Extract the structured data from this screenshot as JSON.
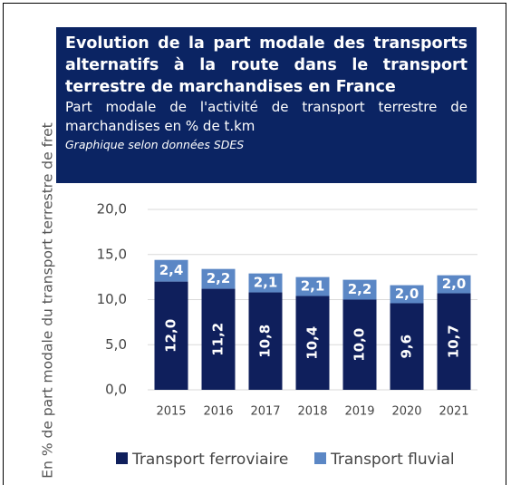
{
  "chart_data": {
    "type": "stacked_bar",
    "title": "Evolution de la part modale des transports alternatifs à la route dans le transport terrestre de marchandises en France",
    "subtitle": "Part modale de l'activité de transport terrestre de marchandises en % de t.km",
    "source": "Graphique selon données SDES",
    "y_label": "En % de part modale du transport terrestre de fret",
    "categories": [
      "2015",
      "2016",
      "2017",
      "2018",
      "2019",
      "2020",
      "2021"
    ],
    "series": [
      {
        "name": "Transport ferroviaire",
        "color": "#0f1f5c",
        "values": [
          12.0,
          11.2,
          10.8,
          10.4,
          10.0,
          9.6,
          10.7
        ],
        "value_labels": [
          "12,0",
          "11,2",
          "10,8",
          "10,4",
          "10,0",
          "9,6",
          "10,7"
        ]
      },
      {
        "name": "Transport fluvial",
        "color": "#5b87c5",
        "values": [
          2.4,
          2.2,
          2.1,
          2.1,
          2.2,
          2.0,
          2.0
        ],
        "value_labels": [
          "2,4",
          "2,2",
          "2,1",
          "2,1",
          "2,2",
          "2,0",
          "2,0"
        ]
      }
    ],
    "ylim": [
      0,
      20
    ],
    "yticks": [
      {
        "value": 0,
        "label": "0,0"
      },
      {
        "value": 5,
        "label": "5,0"
      },
      {
        "value": 10,
        "label": "10,0"
      },
      {
        "value": 15,
        "label": "15,0"
      },
      {
        "value": 20,
        "label": "20,0"
      }
    ],
    "grid": true,
    "legend": "bottom"
  }
}
